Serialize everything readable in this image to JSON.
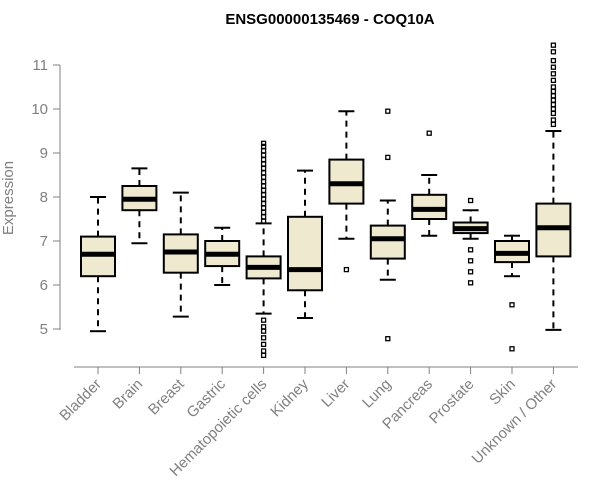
{
  "chart_data": {
    "type": "boxplot",
    "title": "ENSG00000135469 - COQ10A",
    "xlabel": "",
    "ylabel": "Expression",
    "ylim": [
      4.2,
      11.5
    ],
    "yticks": [
      5,
      6,
      7,
      8,
      9,
      10,
      11
    ],
    "box_color": "#efe9d0",
    "axis_color": "#808080",
    "categories": [
      "Bladder",
      "Brain",
      "Breast",
      "Gastric",
      "Hematopoietic cells",
      "Kidney",
      "Liver",
      "Lung",
      "Pancreas",
      "Prostate",
      "Skin",
      "Unknown / Other"
    ],
    "boxes": [
      {
        "name": "Bladder",
        "whislo": 4.95,
        "q1": 6.2,
        "med": 6.7,
        "q3": 7.1,
        "whishi": 8.0,
        "fliers": []
      },
      {
        "name": "Brain",
        "whislo": 6.95,
        "q1": 7.7,
        "med": 7.95,
        "q3": 8.25,
        "whishi": 8.65,
        "fliers": []
      },
      {
        "name": "Breast",
        "whislo": 5.28,
        "q1": 6.28,
        "med": 6.75,
        "q3": 7.15,
        "whishi": 8.1,
        "fliers": []
      },
      {
        "name": "Gastric",
        "whislo": 6.0,
        "q1": 6.43,
        "med": 6.7,
        "q3": 7.0,
        "whishi": 7.3,
        "fliers": []
      },
      {
        "name": "Hematopoietic cells",
        "whislo": 5.35,
        "q1": 6.15,
        "med": 6.4,
        "q3": 6.65,
        "whishi": 7.4,
        "fliers": [
          4.4,
          4.5,
          4.65,
          4.8,
          4.95,
          5.05,
          5.2,
          7.45,
          7.55,
          7.65,
          7.75,
          7.85,
          7.95,
          8.05,
          8.15,
          8.25,
          8.35,
          8.45,
          8.55,
          8.65,
          8.75,
          8.85,
          8.95,
          9.05,
          9.15,
          9.22
        ]
      },
      {
        "name": "Kidney",
        "whislo": 5.25,
        "q1": 5.88,
        "med": 6.35,
        "q3": 7.55,
        "whishi": 8.6,
        "fliers": []
      },
      {
        "name": "Liver",
        "whislo": 7.05,
        "q1": 7.85,
        "med": 8.3,
        "q3": 8.85,
        "whishi": 9.95,
        "fliers": [
          6.35
        ]
      },
      {
        "name": "Lung",
        "whislo": 6.12,
        "q1": 6.6,
        "med": 7.05,
        "q3": 7.35,
        "whishi": 7.92,
        "fliers": [
          4.78,
          8.9,
          9.95
        ]
      },
      {
        "name": "Pancreas",
        "whislo": 7.12,
        "q1": 7.5,
        "med": 7.72,
        "q3": 8.05,
        "whishi": 8.5,
        "fliers": [
          9.45
        ]
      },
      {
        "name": "Prostate",
        "whislo": 7.05,
        "q1": 7.18,
        "med": 7.28,
        "q3": 7.42,
        "whishi": 7.7,
        "fliers": [
          6.05,
          6.3,
          6.55,
          6.8,
          7.92
        ]
      },
      {
        "name": "Skin",
        "whislo": 6.2,
        "q1": 6.52,
        "med": 6.72,
        "q3": 7.0,
        "whishi": 7.12,
        "fliers": [
          4.55,
          5.55
        ]
      },
      {
        "name": "Unknown / Other",
        "whislo": 4.98,
        "q1": 6.65,
        "med": 7.3,
        "q3": 7.85,
        "whishi": 9.5,
        "fliers": [
          9.65,
          9.75,
          9.9,
          10.0,
          10.1,
          10.2,
          10.3,
          10.4,
          10.5,
          10.65,
          10.8,
          10.95,
          11.1,
          11.3,
          11.45
        ]
      }
    ]
  }
}
